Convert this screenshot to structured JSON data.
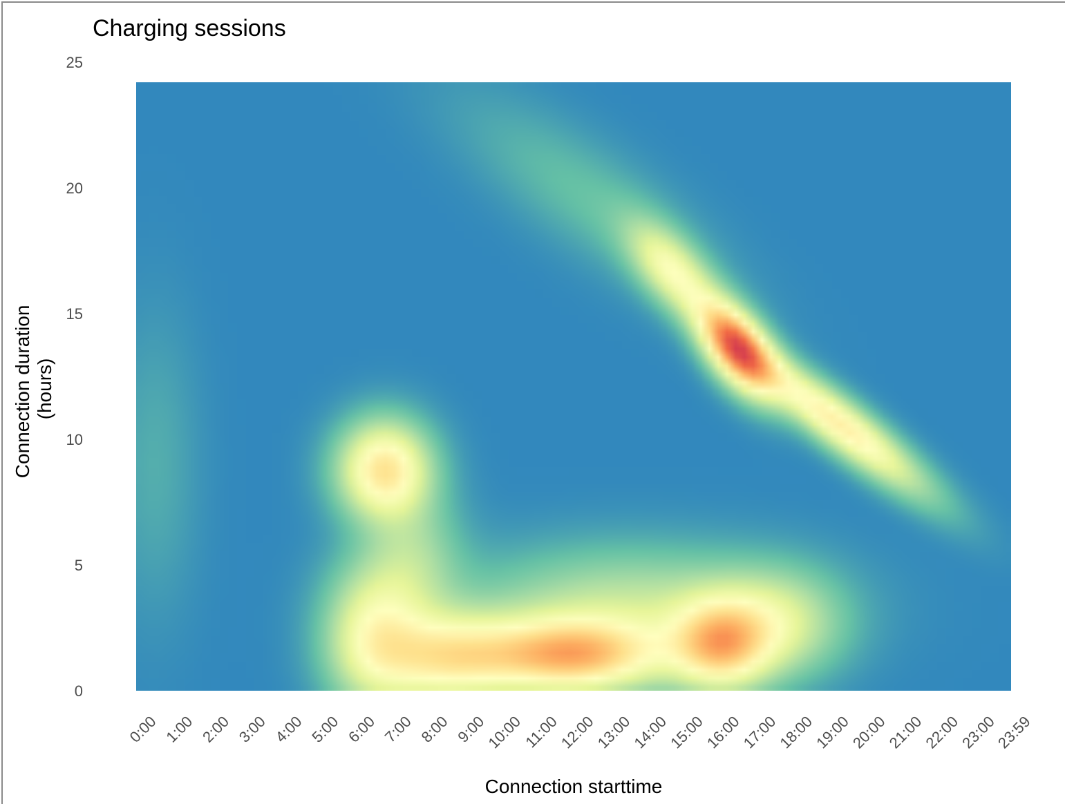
{
  "chart_data": {
    "type": "heatmap",
    "title": "Charging sessions",
    "xlabel": "Connection starttime",
    "ylabel_lines": [
      "Connection duration",
      "(hours)"
    ],
    "x_ticks": [
      "0:00",
      "1:00",
      "2:00",
      "3:00",
      "4:00",
      "5:00",
      "6:00",
      "7:00",
      "8:00",
      "9:00",
      "10:00",
      "11:00",
      "12:00",
      "13:00",
      "14:00",
      "15:00",
      "16:00",
      "17:00",
      "18:00",
      "19:00",
      "20:00",
      "21:00",
      "22:00",
      "23:00",
      "23:59"
    ],
    "y_ticks": [
      "0",
      "5",
      "10",
      "15",
      "20",
      "25"
    ],
    "xlim": [
      0,
      24
    ],
    "ylim": [
      0,
      25
    ],
    "density_extent_y": [
      0,
      24.2
    ],
    "grid": false,
    "legend": "none",
    "colormap": [
      "#3288bd",
      "#66c2a5",
      "#abdda4",
      "#e6f598",
      "#ffffbf",
      "#fee08b",
      "#fdae61",
      "#f46d43",
      "#d53e4f"
    ],
    "density_components": [
      {
        "x_center_hours": 16.5,
        "y_center_hours": 13.6,
        "x_spread": 0.7,
        "y_spread": 1.0,
        "slope": -1.0,
        "weight": 1.0
      },
      {
        "x_center_hours": 19.3,
        "y_center_hours": 10.6,
        "x_spread": 1.6,
        "y_spread": 0.8,
        "slope": -1.05,
        "weight": 0.58
      },
      {
        "x_center_hours": 14.7,
        "y_center_hours": 16.7,
        "x_spread": 0.8,
        "y_spread": 1.0,
        "slope": -1.0,
        "weight": 0.42
      },
      {
        "x_center_hours": 12.5,
        "y_center_hours": 19.5,
        "x_spread": 2.4,
        "y_spread": 1.6,
        "slope": -0.9,
        "weight": 0.1
      },
      {
        "x_center_hours": 6.8,
        "y_center_hours": 8.8,
        "x_spread": 0.85,
        "y_spread": 1.3,
        "slope": 0,
        "weight": 0.62
      },
      {
        "x_center_hours": 6.5,
        "y_center_hours": 2.2,
        "x_spread": 0.9,
        "y_spread": 1.9,
        "slope": 0,
        "weight": 0.42
      },
      {
        "x_center_hours": 8.5,
        "y_center_hours": 1.3,
        "x_spread": 1.3,
        "y_spread": 1.2,
        "slope": 0,
        "weight": 0.5
      },
      {
        "x_center_hours": 11.9,
        "y_center_hours": 1.4,
        "x_spread": 1.7,
        "y_spread": 1.0,
        "slope": 0,
        "weight": 0.72
      },
      {
        "x_center_hours": 16.0,
        "y_center_hours": 1.8,
        "x_spread": 0.9,
        "y_spread": 1.2,
        "slope": 0,
        "weight": 0.6
      },
      {
        "x_center_hours": 13.5,
        "y_center_hours": 3.3,
        "x_spread": 3.0,
        "y_spread": 1.6,
        "slope": 0,
        "weight": 0.27
      },
      {
        "x_center_hours": 17.5,
        "y_center_hours": 2.6,
        "x_spread": 1.2,
        "y_spread": 1.4,
        "slope": 0,
        "weight": 0.3
      },
      {
        "x_center_hours": 7.6,
        "y_center_hours": 5.2,
        "x_spread": 0.9,
        "y_spread": 1.8,
        "slope": 0,
        "weight": 0.2
      },
      {
        "x_center_hours": 0.5,
        "y_center_hours": 9.0,
        "x_spread": 0.8,
        "y_spread": 4.0,
        "slope": 0,
        "weight": 0.06
      }
    ]
  }
}
